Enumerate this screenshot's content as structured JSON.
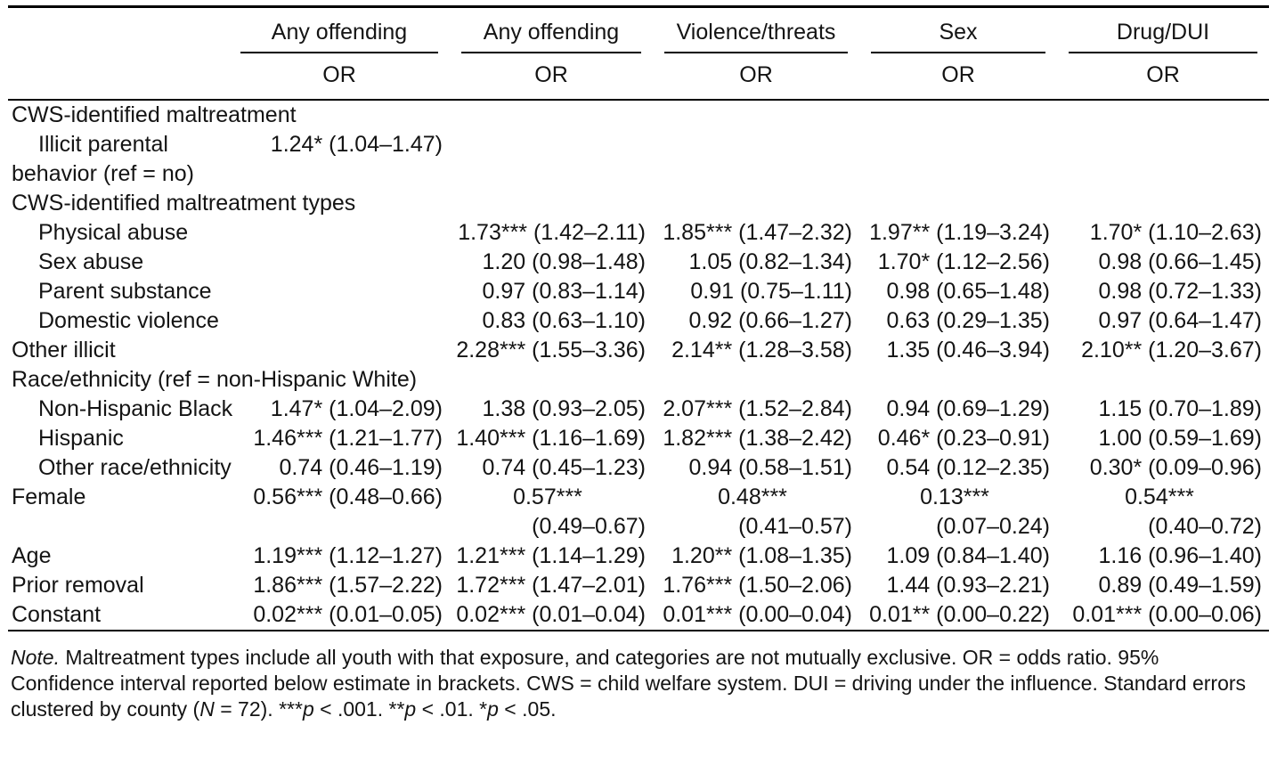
{
  "colors": {
    "background": "#ffffff",
    "text": "#141414",
    "rule": "#000000"
  },
  "table": {
    "col_groups": [
      "Any offending",
      "Any offending",
      "Violence/threats",
      "Sex",
      "Drug/DUI"
    ],
    "sub_header": "OR",
    "rows": [
      {
        "label": "CWS-identified maltreatment",
        "indent": 0,
        "cells": [
          "",
          "",
          "",
          "",
          ""
        ]
      },
      {
        "label": "Illicit parental",
        "label2": "behavior (ref = no)",
        "indent": 1,
        "cells": [
          "1.24* (1.04–1.47)",
          "",
          "",
          "",
          ""
        ]
      },
      {
        "label": "CWS-identified maltreatment types",
        "indent": 0,
        "cells": [
          "",
          "",
          "",
          "",
          ""
        ]
      },
      {
        "label": "Physical abuse",
        "indent": 1,
        "cells": [
          "",
          "1.73*** (1.42–2.11)",
          "1.85*** (1.47–2.32)",
          "1.97** (1.19–3.24)",
          "1.70* (1.10–2.63)"
        ]
      },
      {
        "label": "Sex abuse",
        "indent": 1,
        "cells": [
          "",
          "1.20 (0.98–1.48)",
          "1.05 (0.82–1.34)",
          "1.70* (1.12–2.56)",
          "0.98 (0.66–1.45)"
        ]
      },
      {
        "label": "Parent substance",
        "indent": 1,
        "cells": [
          "",
          "0.97 (0.83–1.14)",
          "0.91 (0.75–1.11)",
          "0.98 (0.65–1.48)",
          "0.98 (0.72–1.33)"
        ]
      },
      {
        "label": "Domestic violence",
        "indent": 1,
        "cells": [
          "",
          "0.83 (0.63–1.10)",
          "0.92 (0.66–1.27)",
          "0.63 (0.29–1.35)",
          "0.97 (0.64–1.47)"
        ]
      },
      {
        "label": "Other illicit",
        "indent": 0,
        "cells": [
          "",
          "2.28*** (1.55–3.36)",
          "2.14** (1.28–3.58)",
          "1.35 (0.46–3.94)",
          "2.10** (1.20–3.67)"
        ]
      },
      {
        "label": "Race/ethnicity (ref = non-Hispanic White)",
        "indent": 0,
        "cells": [
          "",
          "",
          "",
          "",
          ""
        ]
      },
      {
        "label": "Non-Hispanic Black",
        "indent": 1,
        "cells": [
          "1.47* (1.04–2.09)",
          "1.38 (0.93–2.05)",
          "2.07*** (1.52–2.84)",
          "0.94 (0.69–1.29)",
          "1.15 (0.70–1.89)"
        ]
      },
      {
        "label": "Hispanic",
        "indent": 1,
        "cells": [
          "1.46*** (1.21–1.77)",
          "1.40*** (1.16–1.69)",
          "1.82*** (1.38–2.42)",
          "0.46* (0.23–0.91)",
          "1.00 (0.59–1.69)"
        ]
      },
      {
        "label": "Other race/ethnicity",
        "indent": 1,
        "cells": [
          "0.74 (0.46–1.19)",
          "0.74 (0.45–1.23)",
          "0.94 (0.58–1.51)",
          "0.54 (0.12–2.35)",
          "0.30* (0.09–0.96)"
        ]
      },
      {
        "label": "Female",
        "indent": 0,
        "cells": [
          "0.56*** (0.48–0.66)",
          {
            "line1": "0.57***",
            "line2": "(0.49–0.67)"
          },
          {
            "line1": "0.48***",
            "line2": "(0.41–0.57)"
          },
          {
            "line1": "0.13***",
            "line2": "(0.07–0.24)"
          },
          {
            "line1": "0.54***",
            "line2": "(0.40–0.72)"
          }
        ]
      },
      {
        "label": "Age",
        "indent": 0,
        "cells": [
          "1.19*** (1.12–1.27)",
          "1.21*** (1.14–1.29)",
          "1.20** (1.08–1.35)",
          "1.09 (0.84–1.40)",
          "1.16 (0.96–1.40)"
        ]
      },
      {
        "label": "Prior removal",
        "indent": 0,
        "cells": [
          "1.86*** (1.57–2.22)",
          "1.72*** (1.47–2.01)",
          "1.76*** (1.50–2.06)",
          "1.44 (0.93–2.21)",
          "0.89 (0.49–1.59)"
        ]
      },
      {
        "label": "Constant",
        "indent": 0,
        "cells": [
          "0.02*** (0.01–0.05)",
          "0.02*** (0.01–0.04)",
          "0.01*** (0.00–0.04)",
          "0.01** (0.00–0.22)",
          "0.01*** (0.00–0.06)"
        ]
      }
    ]
  },
  "note": {
    "segments": [
      {
        "text": "Note.",
        "italic": true
      },
      {
        "text": " Maltreatment types include all youth with that exposure, and categories are not mutually exclusive. OR = odds ratio. 95% Confidence interval reported below estimate in brackets. CWS = child welfare system. DUI = driving under the influence. Standard errors clustered by county (",
        "italic": false
      },
      {
        "text": "N",
        "italic": true
      },
      {
        "text": " = 72). ",
        "italic": false
      },
      {
        "text": "***",
        "italic": false
      },
      {
        "text": "p",
        "italic": true
      },
      {
        "text": " < .001. ",
        "italic": false
      },
      {
        "text": "**",
        "italic": false
      },
      {
        "text": "p",
        "italic": true
      },
      {
        "text": " < .01. ",
        "italic": false
      },
      {
        "text": "*",
        "italic": false
      },
      {
        "text": "p",
        "italic": true
      },
      {
        "text": " < .05.",
        "italic": false
      }
    ]
  }
}
